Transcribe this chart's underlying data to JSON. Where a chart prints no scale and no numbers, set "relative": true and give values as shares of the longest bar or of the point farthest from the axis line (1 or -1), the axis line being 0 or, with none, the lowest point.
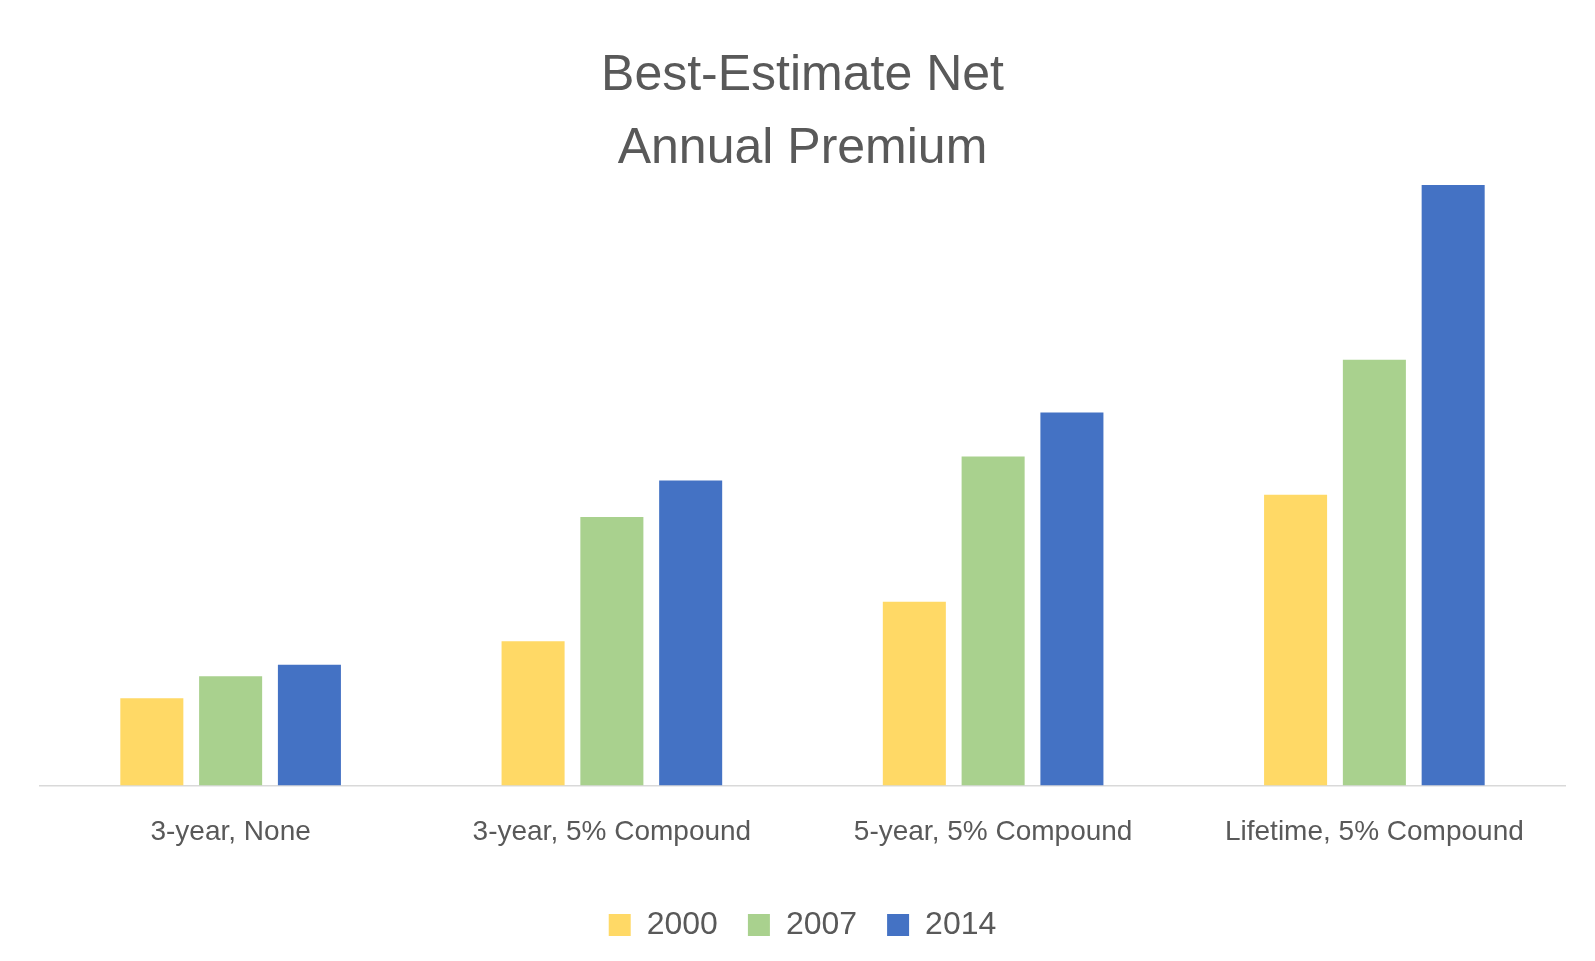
{
  "chart_data": {
    "type": "bar",
    "title": [
      "Best-Estimate Net",
      "Annual Premium"
    ],
    "relative": true,
    "categories": [
      "3-year, None",
      "3-year, 5% Compound",
      "5-year, 5% Compound",
      "Lifetime, 5% Compound"
    ],
    "series": [
      {
        "name": "2000",
        "color": "#ffd966",
        "values": [
          0.145,
          0.24,
          0.306,
          0.484
        ]
      },
      {
        "name": "2007",
        "color": "#a9d18e",
        "values": [
          0.182,
          0.447,
          0.548,
          0.709
        ]
      },
      {
        "name": "2014",
        "color": "#4472c4",
        "values": [
          0.201,
          0.508,
          0.621,
          1
        ]
      }
    ],
    "legend": "bottom"
  }
}
